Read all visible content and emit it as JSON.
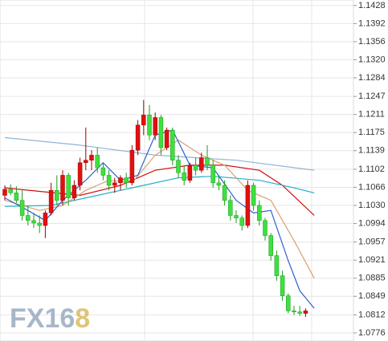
{
  "chart_data": {
    "type": "candlestick",
    "watermark": [
      "FX16",
      "8"
    ],
    "up_color": "#e01010",
    "down_color": "#3ee03e",
    "ylim": [
      1.076,
      1.1439
    ],
    "yticks": [
      1.1428,
      1.1392,
      1.1356,
      {
        "value": 1.132,
        "label": "1.1320"
      },
      1.1284,
      1.1247,
      1.1211,
      1.1175,
      1.1139,
      1.1102,
      1.1066,
      {
        "value": 1.103,
        "label": "1.1030"
      },
      1.0994,
      1.0957,
      1.0921,
      1.0885,
      1.0849,
      1.0812,
      1.0776
    ],
    "grid": true,
    "open": [
      1.105,
      1.1062,
      1.1055,
      1.104,
      1.101,
      1.1,
      1.0995,
      1.099,
      1.1015,
      1.106,
      1.104,
      1.109,
      1.1045,
      1.107,
      1.1115,
      1.112,
      1.113,
      1.1105,
      1.109,
      1.107,
      1.1075,
      1.1085,
      1.1075,
      1.114,
      1.119,
      1.121,
      1.117,
      1.1205,
      1.1145,
      1.118,
      1.112,
      1.1095,
      1.108,
      1.111,
      1.11,
      1.1125,
      1.111,
      1.1075,
      1.107,
      1.104,
      1.101,
      1.1005,
      1.099,
      1.107,
      1.103,
      1.1,
      1.097,
      1.093,
      1.089,
      1.085,
      1.082,
      1.0818,
      1.0815
    ],
    "high": [
      1.107,
      1.1072,
      1.1068,
      1.106,
      1.103,
      1.1015,
      1.101,
      1.102,
      1.1075,
      1.109,
      1.11,
      1.1095,
      1.108,
      1.1125,
      1.1185,
      1.114,
      1.1145,
      1.1115,
      1.11,
      1.1085,
      1.109,
      1.1095,
      1.115,
      1.12,
      1.124,
      1.123,
      1.1215,
      1.121,
      1.1185,
      1.1185,
      1.113,
      1.111,
      1.1115,
      1.1125,
      1.1135,
      1.115,
      1.112,
      1.109,
      1.108,
      1.105,
      1.102,
      1.101,
      1.108,
      1.1075,
      1.104,
      1.1005,
      1.0975,
      1.094,
      1.09,
      1.0855,
      1.083,
      1.083,
      1.0825
    ],
    "low": [
      1.104,
      1.105,
      1.1035,
      1.1,
      1.099,
      1.0985,
      1.0975,
      1.0965,
      1.101,
      1.103,
      1.103,
      1.103,
      1.104,
      1.106,
      1.11,
      1.11,
      1.1095,
      1.108,
      1.106,
      1.1055,
      1.106,
      1.1065,
      1.107,
      1.113,
      1.117,
      1.116,
      1.116,
      1.113,
      1.114,
      1.111,
      1.1085,
      1.107,
      1.1075,
      1.109,
      1.1095,
      1.11,
      1.1065,
      1.106,
      1.103,
      1.1,
      1.0995,
      1.098,
      1.0985,
      1.102,
      1.099,
      1.096,
      1.092,
      1.088,
      1.084,
      1.0815,
      1.0812,
      1.081,
      1.0808
    ],
    "close": [
      1.1062,
      1.1055,
      1.104,
      1.101,
      1.1,
      1.0995,
      1.099,
      1.1015,
      1.106,
      1.104,
      1.109,
      1.1045,
      1.107,
      1.1115,
      1.112,
      1.113,
      1.1105,
      1.109,
      1.107,
      1.1075,
      1.1085,
      1.1075,
      1.114,
      1.119,
      1.121,
      1.117,
      1.1205,
      1.1145,
      1.118,
      1.112,
      1.1095,
      1.108,
      1.111,
      1.11,
      1.1125,
      1.111,
      1.1075,
      1.107,
      1.104,
      1.101,
      1.1005,
      1.099,
      1.107,
      1.103,
      1.1,
      1.097,
      1.093,
      1.089,
      1.085,
      1.082,
      1.0818,
      1.0815,
      1.082
    ],
    "lines": [
      {
        "color": "#8fb4d8",
        "x": [
          0,
          13,
          26,
          40,
          53.5
        ],
        "values": [
          1.1165,
          1.115,
          1.113,
          1.112,
          1.11
        ]
      },
      {
        "color": "#d01010",
        "x": [
          0,
          6,
          13,
          20,
          26,
          32,
          38,
          44,
          48,
          53.5
        ],
        "values": [
          1.1065,
          1.1058,
          1.105,
          1.107,
          1.11,
          1.111,
          1.111,
          1.11,
          1.107,
          1.101
        ]
      },
      {
        "color": "#22b0c8",
        "x": [
          0,
          8,
          16,
          24,
          30,
          36,
          44,
          50,
          53.5
        ],
        "values": [
          1.1028,
          1.103,
          1.105,
          1.107,
          1.1085,
          1.1088,
          1.108,
          1.1065,
          1.1055
        ]
      },
      {
        "color": "#d8a070",
        "x": [
          0,
          6,
          10,
          14,
          18,
          22,
          26,
          30,
          34,
          38,
          42,
          46,
          50,
          53.5
        ],
        "values": [
          1.104,
          1.102,
          1.103,
          1.106,
          1.108,
          1.1075,
          1.113,
          1.116,
          1.113,
          1.111,
          1.106,
          1.104,
          1.096,
          1.0885
        ]
      },
      {
        "color": "#3060d0",
        "x": [
          0,
          4,
          7,
          10,
          14,
          17,
          20,
          23,
          26,
          29,
          32,
          36,
          40,
          43,
          46,
          49,
          51,
          53.5
        ],
        "values": [
          1.1045,
          1.102,
          1.1,
          1.104,
          1.108,
          1.1115,
          1.108,
          1.109,
          1.117,
          1.118,
          1.111,
          1.1105,
          1.104,
          1.1015,
          1.102,
          1.092,
          1.086,
          1.0825
        ]
      }
    ]
  }
}
